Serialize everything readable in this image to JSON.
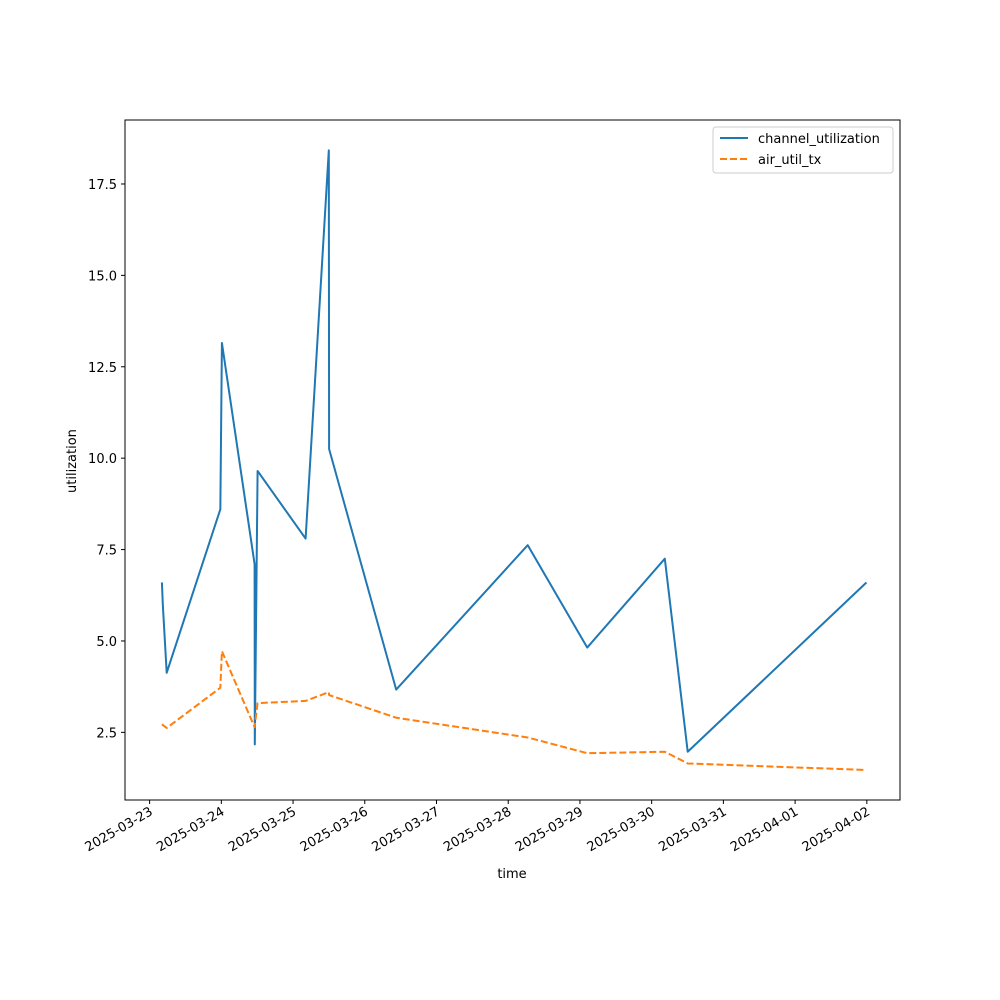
{
  "chart_data": {
    "type": "line",
    "xlabel": "time",
    "ylabel": "utilization",
    "xlim": [
      "2025-03-22T15:46:00",
      "2025-04-02T11:06:00"
    ],
    "ylim": [
      0.65,
      19.25
    ],
    "x_ticks": [
      "2025-03-23",
      "2025-03-24",
      "2025-03-25",
      "2025-03-26",
      "2025-03-27",
      "2025-03-28",
      "2025-03-29",
      "2025-03-30",
      "2025-03-31",
      "2025-04-01",
      "2025-04-02"
    ],
    "y_ticks": [
      2.5,
      5.0,
      7.5,
      10.0,
      12.5,
      15.0,
      17.5
    ],
    "y_tick_labels": [
      "2.5",
      "5.0",
      "7.5",
      "10.0",
      "12.5",
      "15.0",
      "17.5"
    ],
    "legend_position": "upper-right",
    "grid": false,
    "series": [
      {
        "name": "channel_utilization",
        "color": "#1f77b4",
        "style": "solid",
        "points": [
          [
            "2025-03-23T04:07:00",
            6.6
          ],
          [
            "2025-03-23T04:25:00",
            6.0
          ],
          [
            "2025-03-23T05:43:00",
            4.13
          ],
          [
            "2025-03-23T23:40:00",
            8.6
          ],
          [
            "2025-03-24T00:12:00",
            13.15
          ],
          [
            "2025-03-24T11:08:00",
            7.1
          ],
          [
            "2025-03-24T11:12:00",
            2.17
          ],
          [
            "2025-03-24T12:08:00",
            9.65
          ],
          [
            "2025-03-25T04:12:00",
            7.8
          ],
          [
            "2025-03-25T11:58:00",
            18.42
          ],
          [
            "2025-03-25T12:04:00",
            10.25
          ],
          [
            "2025-03-26T10:31:00",
            3.67
          ],
          [
            "2025-03-28T06:31:00",
            7.62
          ],
          [
            "2025-03-29T02:26:00",
            4.82
          ],
          [
            "2025-03-30T04:24:00",
            7.25
          ],
          [
            "2025-03-30T12:04:00",
            1.97
          ],
          [
            "2025-04-01T23:52:00",
            6.6
          ]
        ]
      },
      {
        "name": "air_util_tx",
        "color": "#ff7f0e",
        "style": "dashed",
        "points": [
          [
            "2025-03-23T04:07:00",
            2.72
          ],
          [
            "2025-03-23T05:43:00",
            2.62
          ],
          [
            "2025-03-23T23:40:00",
            3.72
          ],
          [
            "2025-03-24T00:12:00",
            4.72
          ],
          [
            "2025-03-24T11:08:00",
            2.64
          ],
          [
            "2025-03-24T12:08:00",
            3.3
          ],
          [
            "2025-03-25T04:12:00",
            3.36
          ],
          [
            "2025-03-25T11:58:00",
            3.6
          ],
          [
            "2025-03-25T12:04:00",
            3.52
          ],
          [
            "2025-03-26T10:31:00",
            2.9
          ],
          [
            "2025-03-28T06:31:00",
            2.36
          ],
          [
            "2025-03-29T02:26:00",
            1.93
          ],
          [
            "2025-03-30T04:24:00",
            1.97
          ],
          [
            "2025-03-30T12:04:00",
            1.65
          ],
          [
            "2025-04-01T23:52:00",
            1.47
          ]
        ]
      }
    ]
  }
}
